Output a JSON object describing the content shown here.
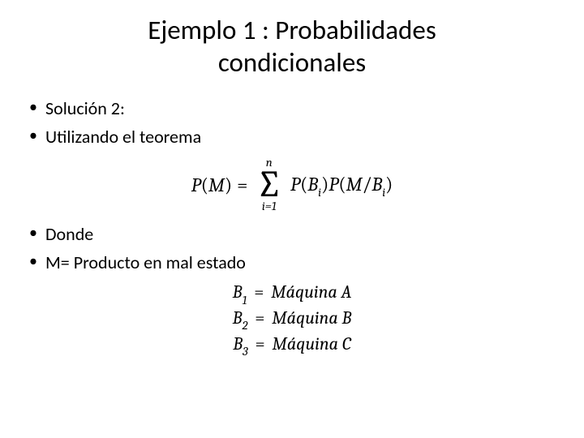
{
  "title_line1": "Ejemplo 1 : Probabilidades",
  "title_line2": "condicionales",
  "body": {
    "solution_label": "Solución 2:",
    "using_theorem": "Utilizando el teorema",
    "donde": "Donde",
    "m_def": "M= Producto en mal estado"
  },
  "formula": {
    "lhs_P": "P",
    "lhs_M": "M",
    "eq": "=",
    "sum_top": "n",
    "sum_sym": "∑",
    "sum_bot": "i=1",
    "rhs_P1": "P",
    "rhs_B": "B",
    "rhs_i": "i",
    "rhs_P2": "P",
    "rhs_M": "M",
    "slash": "/",
    "rhs_B2": "B",
    "rhs_i2": "i"
  },
  "defs": [
    {
      "b": "B",
      "idx": "1",
      "eq": "=",
      "m": "M",
      "rest": "áquina A"
    },
    {
      "b": "B",
      "idx": "2",
      "eq": "=",
      "m": "M",
      "rest": "áquina B"
    },
    {
      "b": "B",
      "idx": "3",
      "eq": "=",
      "m": "M",
      "rest": "áquina C"
    }
  ],
  "colors": {
    "text": "#000000",
    "background": "#ffffff"
  },
  "typography": {
    "title_fontsize": 33,
    "body_fontsize": 22,
    "math_fontsize": 24,
    "sub_fontsize": 15,
    "sigma_fontsize": 46
  }
}
